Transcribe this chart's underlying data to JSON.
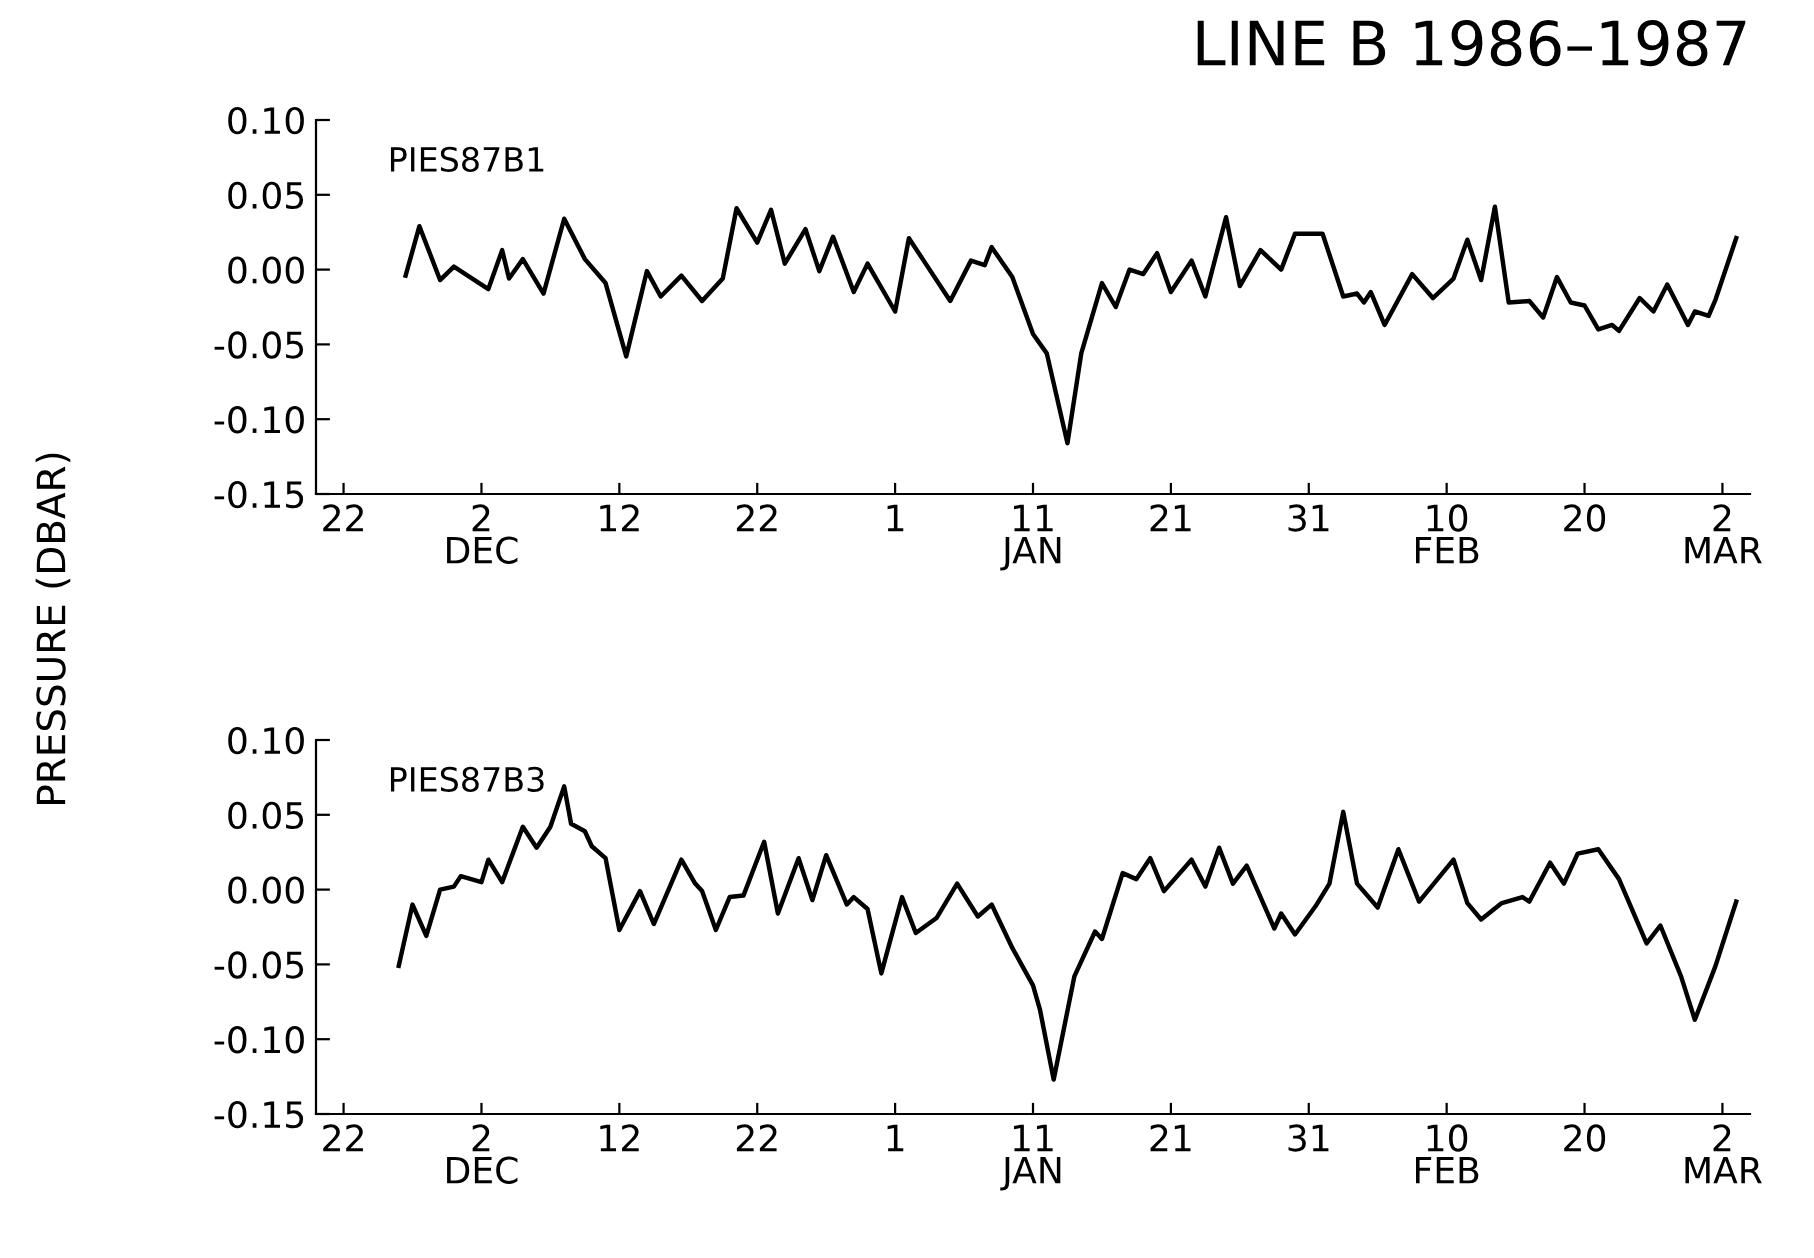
{
  "chart_data": [
    {
      "type": "line",
      "title": "LINE B 1986–1987",
      "ylabel": "PRESSURE (DBAR)",
      "xlim": [
        "1986-11-20",
        "1987-03-04"
      ],
      "xticks": [
        {
          "value": "1986-11-22",
          "label": "22"
        },
        {
          "value": "1986-12-02",
          "label": "2\nDEC"
        },
        {
          "value": "1986-12-12",
          "label": "12"
        },
        {
          "value": "1986-12-22",
          "label": "22"
        },
        {
          "value": "1987-01-01",
          "label": "1"
        },
        {
          "value": "1987-01-11",
          "label": "11\nJAN"
        },
        {
          "value": "1987-01-21",
          "label": "21"
        },
        {
          "value": "1987-01-31",
          "label": "31"
        },
        {
          "value": "1987-02-10",
          "label": "10\nFEB"
        },
        {
          "value": "1987-02-20",
          "label": "20"
        },
        {
          "value": "1987-03-02",
          "label": "2\nMAR"
        }
      ],
      "ylim": [
        -0.15,
        0.1
      ],
      "yticks": [
        {
          "value": 0.1,
          "label": "0.10"
        },
        {
          "value": 0.05,
          "label": "0.05"
        },
        {
          "value": 0,
          "label": "0.00"
        },
        {
          "value": -0.05,
          "label": "-0.05"
        },
        {
          "value": -0.1,
          "label": "-0.10"
        },
        {
          "value": -0.15,
          "label": "-0.15"
        }
      ],
      "series": [
        {
          "name": "PIES87B1",
          "color": "#000000",
          "x": [
            "1986-11-26T12:00",
            "1986-11-27T12:00",
            "1986-11-29",
            "1986-11-30",
            "1986-12-02T12:00",
            "1986-12-03T12:00",
            "1986-12-04",
            "1986-12-05",
            "1986-12-06T12:00",
            "1986-12-08",
            "1986-12-09T12:00",
            "1986-12-11",
            "1986-12-12T12:00",
            "1986-12-14",
            "1986-12-15",
            "1986-12-16T12:00",
            "1986-12-18",
            "1986-12-19T12:00",
            "1986-12-20T12:00",
            "1986-12-22",
            "1986-12-23",
            "1986-12-24",
            "1986-12-25T12:00",
            "1986-12-26T12:00",
            "1986-12-27T12:00",
            "1986-12-29",
            "1986-12-30",
            "1987-01-01",
            "1987-01-02",
            "1987-01-03",
            "1987-01-05",
            "1987-01-06T12:00",
            "1987-01-07T12:00",
            "1987-01-08",
            "1987-01-09T12:00",
            "1987-01-11",
            "1987-01-12",
            "1987-01-13T12:00",
            "1987-01-14T12:00",
            "1987-01-16",
            "1987-01-17",
            "1987-01-18",
            "1987-01-19",
            "1987-01-20",
            "1987-01-21",
            "1987-01-22T12:00",
            "1987-01-23T12:00",
            "1987-01-25",
            "1987-01-26",
            "1987-01-27T12:00",
            "1987-01-29",
            "1987-01-30",
            "1987-02-01",
            "1987-02-02T12:00",
            "1987-02-03T12:00",
            "1987-02-04",
            "1987-02-04T12:00",
            "1987-02-05T12:00",
            "1987-02-07T12:00",
            "1987-02-09",
            "1987-02-10T12:00",
            "1987-02-11T12:00",
            "1987-02-12T12:00",
            "1987-02-13T12:00",
            "1987-02-14T12:00",
            "1987-02-16",
            "1987-02-17",
            "1987-02-18",
            "1987-02-19",
            "1987-02-20",
            "1987-02-21",
            "1987-02-22",
            "1987-02-22T12:00",
            "1987-02-24",
            "1987-02-25",
            "1987-02-26",
            "1987-02-27T12:00",
            "1987-02-28",
            "1987-03-01",
            "1987-03-01T12:00",
            "1987-03-03"
          ],
          "values": [
            -0.004,
            0.029,
            -0.007,
            0.002,
            -0.013,
            0.013,
            -0.006,
            0.007,
            -0.016,
            0.034,
            0.007,
            -0.009,
            -0.058,
            -0.001,
            -0.018,
            -0.004,
            -0.021,
            -0.006,
            0.041,
            0.018,
            0.04,
            0.004,
            0.027,
            -0.001,
            0.022,
            -0.015,
            0.004,
            -0.028,
            0.021,
            0.007,
            -0.021,
            0.006,
            0.003,
            0.015,
            -0.005,
            -0.043,
            -0.056,
            -0.116,
            -0.056,
            -0.009,
            -0.025,
            0.0,
            -0.003,
            0.011,
            -0.015,
            0.006,
            -0.018,
            0.035,
            -0.011,
            0.013,
            0.0,
            0.024,
            0.024,
            -0.018,
            -0.016,
            -0.022,
            -0.015,
            -0.037,
            -0.003,
            -0.019,
            -0.006,
            0.02,
            -0.007,
            0.042,
            -0.022,
            -0.021,
            -0.032,
            -0.005,
            -0.022,
            -0.024,
            -0.04,
            -0.037,
            -0.041,
            -0.019,
            -0.028,
            -0.01,
            -0.037,
            -0.028,
            -0.031,
            -0.02,
            0.021
          ]
        }
      ]
    },
    {
      "type": "line",
      "xlim": [
        "1986-11-20",
        "1987-03-04"
      ],
      "xticks": [
        {
          "value": "1986-11-22",
          "label": "22"
        },
        {
          "value": "1986-12-02",
          "label": "2\nDEC"
        },
        {
          "value": "1986-12-12",
          "label": "12"
        },
        {
          "value": "1986-12-22",
          "label": "22"
        },
        {
          "value": "1987-01-01",
          "label": "1"
        },
        {
          "value": "1987-01-11",
          "label": "11\nJAN"
        },
        {
          "value": "1987-01-21",
          "label": "21"
        },
        {
          "value": "1987-01-31",
          "label": "31"
        },
        {
          "value": "1987-02-10",
          "label": "10\nFEB"
        },
        {
          "value": "1987-02-20",
          "label": "20"
        },
        {
          "value": "1987-03-02",
          "label": "2\nMAR"
        }
      ],
      "ylim": [
        -0.15,
        0.1
      ],
      "yticks": [
        {
          "value": 0.1,
          "label": "0.10"
        },
        {
          "value": 0.05,
          "label": "0.05"
        },
        {
          "value": 0,
          "label": "0.00"
        },
        {
          "value": -0.05,
          "label": "-0.05"
        },
        {
          "value": -0.1,
          "label": "-0.10"
        },
        {
          "value": -0.15,
          "label": "-0.15"
        }
      ],
      "series": [
        {
          "name": "PIES87B3",
          "color": "#000000",
          "x": [
            "1986-11-26",
            "1986-11-27",
            "1986-11-28",
            "1986-11-29",
            "1986-11-30",
            "1986-11-30T12:00",
            "1986-12-02",
            "1986-12-02T12:00",
            "1986-12-03T12:00",
            "1986-12-05",
            "1986-12-06",
            "1986-12-07",
            "1986-12-08",
            "1986-12-08T12:00",
            "1986-12-09T12:00",
            "1986-12-10",
            "1986-12-11",
            "1986-12-12",
            "1986-12-13T12:00",
            "1986-12-14T12:00",
            "1986-12-16T12:00",
            "1986-12-17T12:00",
            "1986-12-18",
            "1986-12-19",
            "1986-12-20",
            "1986-12-21",
            "1986-12-22T12:00",
            "1986-12-23T12:00",
            "1986-12-25",
            "1986-12-26",
            "1986-12-27",
            "1986-12-28T12:00",
            "1986-12-29",
            "1986-12-30",
            "1986-12-31",
            "1987-01-01T12:00",
            "1987-01-02T12:00",
            "1987-01-04",
            "1987-01-05T12:00",
            "1987-01-07",
            "1987-01-08",
            "1987-01-09T12:00",
            "1987-01-11",
            "1987-01-11T12:00",
            "1987-01-12T12:00",
            "1987-01-14",
            "1987-01-15T12:00",
            "1987-01-16",
            "1987-01-17T12:00",
            "1987-01-18T12:00",
            "1987-01-19T12:00",
            "1987-01-20T12:00",
            "1987-01-22T12:00",
            "1987-01-23T12:00",
            "1987-01-24T12:00",
            "1987-01-25T12:00",
            "1987-01-26T12:00",
            "1987-01-28T12:00",
            "1987-01-29",
            "1987-01-30",
            "1987-01-31T12:00",
            "1987-02-01T12:00",
            "1987-02-02T12:00",
            "1987-02-03T12:00",
            "1987-02-05",
            "1987-02-06T12:00",
            "1987-02-08",
            "1987-02-10T12:00",
            "1987-02-11T12:00",
            "1987-02-12T12:00",
            "1987-02-14",
            "1987-02-15T12:00",
            "1987-02-16",
            "1987-02-17T12:00",
            "1987-02-18T12:00",
            "1987-02-19T12:00",
            "1987-02-21",
            "1987-02-22T12:00",
            "1987-02-24T12:00",
            "1987-02-25T12:00",
            "1987-02-27",
            "1987-02-28",
            "1987-03-01T12:00",
            "1987-03-03"
          ],
          "values": [
            -0.051,
            -0.01,
            -0.031,
            0.0,
            0.002,
            0.009,
            0.005,
            0.02,
            0.005,
            0.042,
            0.028,
            0.042,
            0.069,
            0.044,
            0.039,
            0.029,
            0.021,
            -0.027,
            -0.001,
            -0.023,
            0.02,
            0.004,
            -0.001,
            -0.027,
            -0.005,
            -0.004,
            0.032,
            -0.016,
            0.021,
            -0.007,
            0.023,
            -0.01,
            -0.005,
            -0.013,
            -0.056,
            -0.005,
            -0.029,
            -0.019,
            0.004,
            -0.018,
            -0.01,
            -0.039,
            -0.064,
            -0.08,
            -0.127,
            -0.058,
            -0.028,
            -0.033,
            0.011,
            0.007,
            0.021,
            -0.001,
            0.02,
            0.002,
            0.028,
            0.004,
            0.016,
            -0.026,
            -0.016,
            -0.03,
            -0.011,
            0.004,
            0.052,
            0.004,
            -0.012,
            0.027,
            -0.008,
            0.02,
            -0.009,
            -0.02,
            -0.009,
            -0.005,
            -0.008,
            0.018,
            0.004,
            0.024,
            0.027,
            0.007,
            -0.036,
            -0.024,
            -0.058,
            -0.087,
            -0.051,
            -0.008
          ]
        }
      ]
    }
  ]
}
